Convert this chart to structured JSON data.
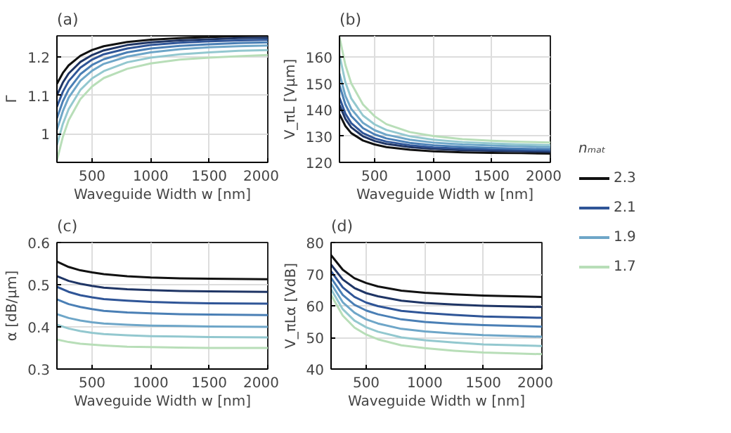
{
  "chart_data": [
    {
      "type": "line",
      "title": "(a)",
      "xlabel": "Waveguide Width w [nm]",
      "ylabel": "Γ",
      "x": [
        200,
        250,
        300,
        400,
        500,
        600,
        800,
        1000,
        1250,
        1500,
        1750,
        2000
      ],
      "xlim": [
        200,
        2000
      ],
      "xticks": [
        500,
        1000,
        1500,
        2000
      ],
      "ylim": [
        0.925,
        1.255
      ],
      "yticks": [
        1,
        1.1,
        1.2
      ],
      "grid": true,
      "series": [
        {
          "color": "#111111",
          "values": [
            1.13,
            1.158,
            1.178,
            1.203,
            1.218,
            1.228,
            1.239,
            1.245,
            1.249,
            1.252,
            1.254,
            1.255
          ]
        },
        {
          "color": "#1f3565",
          "values": [
            1.1,
            1.133,
            1.157,
            1.187,
            1.205,
            1.217,
            1.231,
            1.238,
            1.243,
            1.246,
            1.249,
            1.25
          ]
        },
        {
          "color": "#2f5597",
          "values": [
            1.07,
            1.109,
            1.137,
            1.172,
            1.193,
            1.207,
            1.222,
            1.231,
            1.237,
            1.241,
            1.243,
            1.245
          ]
        },
        {
          "color": "#4a7fb5",
          "values": [
            1.04,
            1.084,
            1.115,
            1.155,
            1.179,
            1.194,
            1.212,
            1.222,
            1.229,
            1.233,
            1.236,
            1.238
          ]
        },
        {
          "color": "#6ea6c8",
          "values": [
            1.01,
            1.058,
            1.094,
            1.138,
            1.164,
            1.182,
            1.201,
            1.212,
            1.22,
            1.225,
            1.228,
            1.23
          ]
        },
        {
          "color": "#93c8cf",
          "values": [
            0.97,
            1.025,
            1.064,
            1.114,
            1.144,
            1.163,
            1.186,
            1.198,
            1.207,
            1.212,
            1.216,
            1.218
          ]
        },
        {
          "color": "#b8deb8",
          "values": [
            0.93,
            0.991,
            1.035,
            1.09,
            1.123,
            1.145,
            1.169,
            1.183,
            1.193,
            1.198,
            1.202,
            1.205
          ]
        }
      ]
    },
    {
      "type": "line",
      "title": "(b)",
      "xlabel": "Waveguide Width w [nm]",
      "ylabel": "V_πL [Vμm]",
      "x": [
        200,
        250,
        300,
        400,
        500,
        600,
        800,
        1000,
        1250,
        1500,
        1750,
        2000
      ],
      "xlim": [
        200,
        2000
      ],
      "xticks": [
        500,
        1000,
        1500,
        2000
      ],
      "ylim": [
        120,
        168
      ],
      "yticks": [
        120,
        130,
        140,
        150,
        160
      ],
      "grid": true,
      "legend": "right",
      "legend_title": "nₘₐₜ",
      "series": [
        {
          "name": "2.3",
          "color": "#111111",
          "values": [
            138.3,
            133.8,
            131.1,
            128.3,
            126.8,
            125.8,
            124.8,
            124.2,
            123.8,
            123.6,
            123.5,
            123.3
          ]
        },
        {
          "color": "#1f3565",
          "values": [
            141.8,
            136.5,
            133.3,
            129.9,
            128.1,
            127.0,
            125.8,
            125.1,
            124.6,
            124.4,
            124.2,
            124.0
          ]
        },
        {
          "name": "2.1",
          "color": "#2f5597",
          "values": [
            144.5,
            138.5,
            134.9,
            131.1,
            129.1,
            127.9,
            126.5,
            125.7,
            125.2,
            124.9,
            124.7,
            124.5
          ]
        },
        {
          "color": "#4a7fb5",
          "values": [
            149.3,
            142.0,
            137.6,
            133.0,
            130.6,
            129.1,
            127.4,
            126.5,
            125.9,
            125.5,
            125.2,
            125.0
          ]
        },
        {
          "name": "1.9",
          "color": "#6ea6c8",
          "values": [
            153.7,
            145.3,
            140.3,
            135.0,
            132.2,
            130.5,
            128.6,
            127.5,
            126.8,
            126.4,
            126.1,
            125.8
          ]
        },
        {
          "color": "#93c8cf",
          "values": [
            160.7,
            150.4,
            144.3,
            137.8,
            134.4,
            132.3,
            129.9,
            128.6,
            127.7,
            127.2,
            126.8,
            126.5
          ]
        },
        {
          "name": "1.7",
          "color": "#b8deb8",
          "values": [
            167.5,
            157,
            150,
            142,
            137.5,
            134.5,
            131.5,
            130,
            128.8,
            128.2,
            127.8,
            127.5
          ]
        }
      ]
    },
    {
      "type": "line",
      "title": "(c)",
      "xlabel": "Waveguide Width w [nm]",
      "ylabel": "α [dB/μm]",
      "x": [
        200,
        300,
        400,
        500,
        600,
        800,
        1000,
        1250,
        1500,
        2000
      ],
      "xlim": [
        200,
        2000
      ],
      "xticks": [
        500,
        1000,
        1500,
        2000
      ],
      "ylim": [
        0.3,
        0.6
      ],
      "yticks": [
        0.3,
        0.4,
        0.5,
        0.6
      ],
      "grid": true,
      "series": [
        {
          "color": "#111111",
          "values": [
            0.555,
            0.542,
            0.534,
            0.529,
            0.525,
            0.52,
            0.517,
            0.515,
            0.514,
            0.513
          ]
        },
        {
          "color": "#1f3565",
          "values": [
            0.52,
            0.509,
            0.502,
            0.497,
            0.493,
            0.489,
            0.487,
            0.485,
            0.484,
            0.483
          ]
        },
        {
          "color": "#2f5597",
          "values": [
            0.495,
            0.483,
            0.475,
            0.47,
            0.466,
            0.462,
            0.459,
            0.457,
            0.456,
            0.455
          ]
        },
        {
          "color": "#4a7fb5",
          "values": [
            0.465,
            0.454,
            0.447,
            0.442,
            0.438,
            0.434,
            0.432,
            0.43,
            0.429,
            0.428
          ]
        },
        {
          "color": "#6ea6c8",
          "values": [
            0.43,
            0.421,
            0.415,
            0.411,
            0.408,
            0.405,
            0.403,
            0.402,
            0.401,
            0.4
          ]
        },
        {
          "color": "#93c8cf",
          "values": [
            0.405,
            0.396,
            0.39,
            0.386,
            0.383,
            0.38,
            0.378,
            0.377,
            0.376,
            0.375
          ]
        },
        {
          "color": "#b8deb8",
          "values": [
            0.37,
            0.364,
            0.36,
            0.358,
            0.356,
            0.353,
            0.352,
            0.351,
            0.35,
            0.35
          ]
        }
      ]
    },
    {
      "type": "line",
      "title": "(d)",
      "xlabel": "Waveguide Width w [nm]",
      "ylabel": "V_πLα [VdB]",
      "x": [
        200,
        300,
        400,
        500,
        600,
        800,
        1000,
        1250,
        1500,
        2000
      ],
      "xlim": [
        200,
        2000
      ],
      "xticks": [
        500,
        1000,
        1500,
        2000
      ],
      "ylim": [
        40,
        80
      ],
      "yticks": [
        40,
        50,
        60,
        70,
        80
      ],
      "grid": true,
      "series": [
        {
          "color": "#111111",
          "values": [
            76,
            71.4,
            68.7,
            67.2,
            66.1,
            64.8,
            64.1,
            63.6,
            63.2,
            62.8
          ]
        },
        {
          "color": "#1f3565",
          "values": [
            73,
            68.3,
            65.6,
            64.0,
            63.0,
            61.6,
            60.9,
            60.4,
            60.0,
            59.6
          ]
        },
        {
          "color": "#2f5597",
          "values": [
            70.9,
            65.8,
            62.8,
            61.0,
            59.9,
            58.4,
            57.7,
            57.1,
            56.6,
            56.2
          ]
        },
        {
          "color": "#4a7fb5",
          "values": [
            68.8,
            63.4,
            60.3,
            58.5,
            57.3,
            55.7,
            54.9,
            54.3,
            53.9,
            53.4
          ]
        },
        {
          "color": "#6ea6c8",
          "values": [
            67,
            61.1,
            57.8,
            55.7,
            54.4,
            52.7,
            51.9,
            51.2,
            50.7,
            50.2
          ]
        },
        {
          "color": "#93c8cf",
          "values": [
            65.2,
            58.9,
            55.3,
            53.2,
            51.8,
            50.0,
            49.1,
            48.4,
            47.8,
            47.3
          ]
        },
        {
          "color": "#b8deb8",
          "values": [
            63.4,
            56.9,
            53.1,
            50.9,
            49.4,
            47.5,
            46.6,
            45.8,
            45.2,
            44.7
          ]
        }
      ]
    }
  ]
}
